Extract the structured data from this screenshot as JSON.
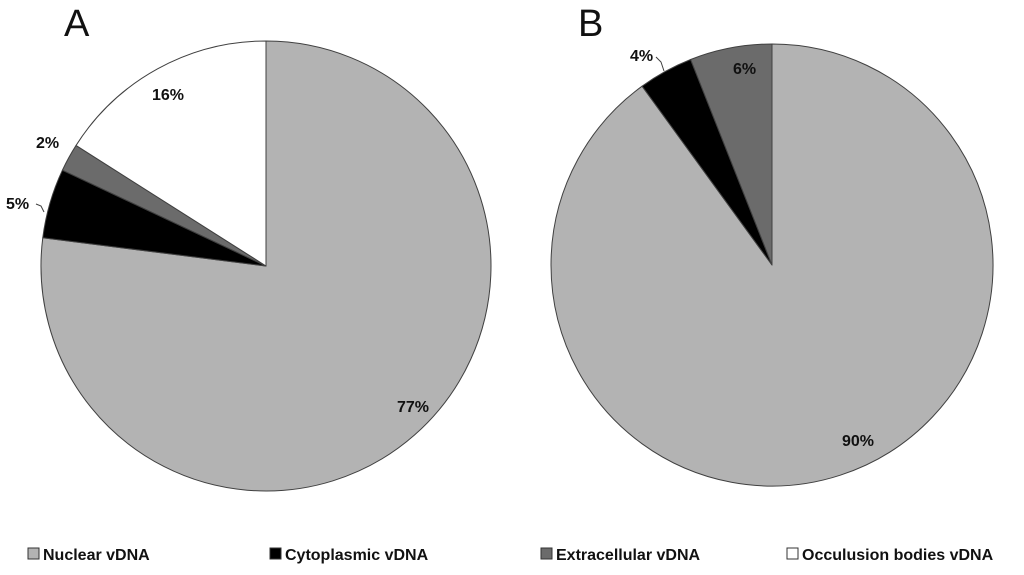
{
  "legend": [
    {
      "label": "Nuclear vDNA",
      "color": "#b3b3b3"
    },
    {
      "label": "Cytoplasmic vDNA",
      "color": "#000000"
    },
    {
      "label": "Extracellular vDNA",
      "color": "#6b6b6b"
    },
    {
      "label": "Occulusion bodies vDNA",
      "color": "#ffffff"
    }
  ],
  "chart_data": [
    {
      "type": "pie",
      "title": "A",
      "start_angle_deg": 0,
      "direction": "clockwise",
      "slices": [
        {
          "name": "Nuclear vDNA",
          "value": 77,
          "label": "77%",
          "color": "#b3b3b3"
        },
        {
          "name": "Cytoplasmic vDNA",
          "value": 5,
          "label": "5%",
          "color": "#000000"
        },
        {
          "name": "Extracellular vDNA",
          "value": 2,
          "label": "2%",
          "color": "#6b6b6b"
        },
        {
          "name": "Occulusion bodies vDNA",
          "value": 16,
          "label": "16%",
          "color": "#ffffff"
        }
      ]
    },
    {
      "type": "pie",
      "title": "B",
      "start_angle_deg": 0,
      "direction": "clockwise",
      "slices": [
        {
          "name": "Nuclear vDNA",
          "value": 90,
          "label": "90%",
          "color": "#b3b3b3"
        },
        {
          "name": "Cytoplasmic vDNA",
          "value": 4,
          "label": "4%",
          "color": "#000000"
        },
        {
          "name": "Extracellular vDNA",
          "value": 6,
          "label": "6%",
          "color": "#6b6b6b"
        },
        {
          "name": "Occulusion bodies vDNA",
          "value": 0,
          "label": "",
          "color": "#ffffff"
        }
      ]
    }
  ]
}
